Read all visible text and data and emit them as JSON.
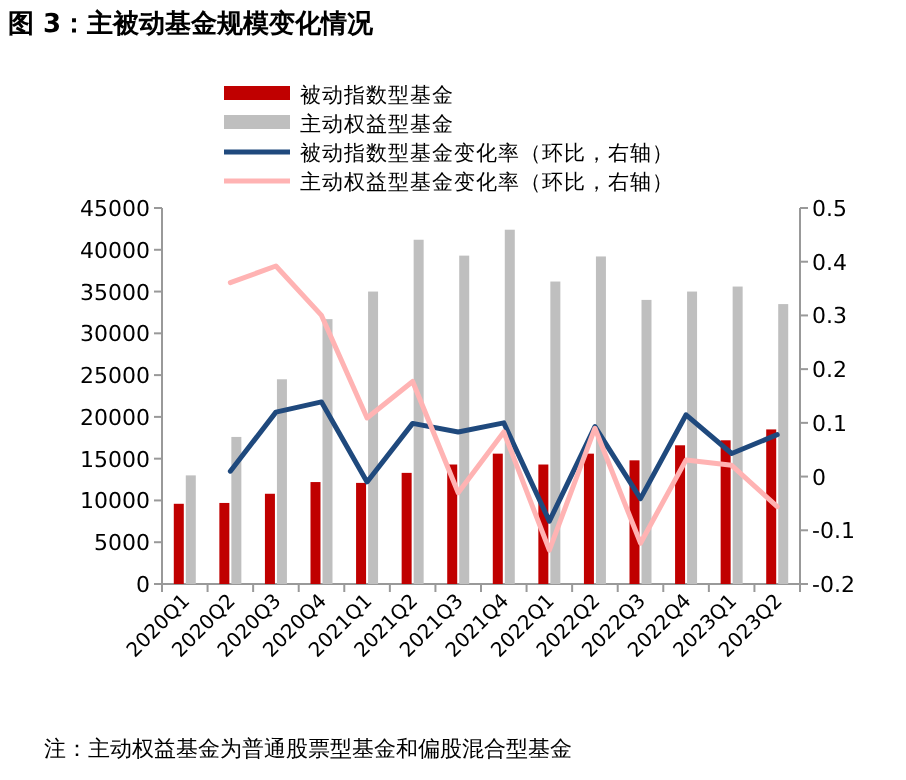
{
  "chart_data": {
    "type": "bar",
    "title": "图 3：主被动基金规模变化情况",
    "categories": [
      "2020Q1",
      "2020Q2",
      "2020Q3",
      "2020Q4",
      "2021Q1",
      "2021Q2",
      "2021Q3",
      "2021Q4",
      "2022Q1",
      "2022Q2",
      "2022Q3",
      "2022Q4",
      "2023Q1",
      "2023Q2"
    ],
    "series": [
      {
        "name": "被动指数型基金",
        "color": "#c00000",
        "values": [
          9600,
          9700,
          10800,
          12200,
          12100,
          13300,
          14300,
          15600,
          14300,
          15600,
          14800,
          16600,
          17200,
          18500
        ]
      },
      {
        "name": "主动权益型基金",
        "color": "#bfbfbf",
        "values": [
          13000,
          17600,
          24500,
          31700,
          35000,
          41200,
          39300,
          42400,
          36200,
          39200,
          34000,
          35000,
          35600,
          33500
        ]
      },
      {
        "name": "被动指数型基金变化率（环比，右轴）",
        "type": "line",
        "axis": "y2",
        "color": "#1f497d",
        "values": [
          null,
          0.01,
          0.12,
          0.139,
          -0.01,
          0.099,
          0.083,
          0.1,
          -0.083,
          0.093,
          -0.041,
          0.115,
          0.043,
          0.078
        ]
      },
      {
        "name": "主动权益型基金变化率（环比，右轴）",
        "type": "line",
        "axis": "y2",
        "color": "#ffb3b3",
        "values": [
          null,
          0.361,
          0.392,
          0.3,
          0.109,
          0.177,
          -0.03,
          0.083,
          -0.137,
          0.09,
          -0.124,
          0.031,
          0.021,
          -0.056
        ]
      }
    ],
    "ylim": [
      0,
      45000
    ],
    "yticks": [
      0,
      5000,
      10000,
      15000,
      20000,
      25000,
      30000,
      35000,
      40000,
      45000
    ],
    "y2lim": [
      -0.2,
      0.5
    ],
    "y2ticks": [
      -0.2,
      -0.1,
      0,
      0.1,
      0.2,
      0.3,
      0.4,
      0.5
    ],
    "legend": "top",
    "grid": false,
    "line_style": "solid",
    "marker": "none",
    "annotations": [
      "注：主动权益基金为普通股票型基金和偏股混合型基金"
    ]
  }
}
